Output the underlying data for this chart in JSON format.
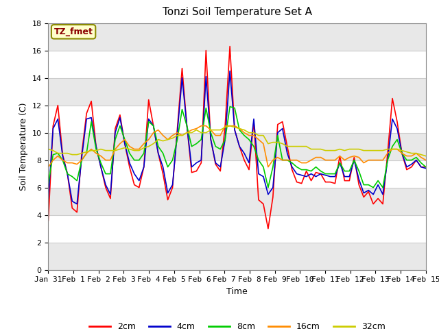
{
  "title": "Tonzi Soil Temperature Set A",
  "xlabel": "Time",
  "ylabel": "Soil Temperature (C)",
  "ylim": [
    0,
    18
  ],
  "yticks": [
    0,
    2,
    4,
    6,
    8,
    10,
    12,
    14,
    16,
    18
  ],
  "x_labels": [
    "Jan 31",
    "Feb 1",
    "Feb 2",
    "Feb 3",
    "Feb 4",
    "Feb 5",
    "Feb 6",
    "Feb 7",
    "Feb 8",
    "Feb 9",
    "Feb 10",
    "Feb 11",
    "Feb 12",
    "Feb 13",
    "Feb 14",
    "Feb 15"
  ],
  "annotation_text": "TZ_fmet",
  "annotation_color": "#8B0000",
  "annotation_bg": "#FFFFCC",
  "band_colors": [
    "#FFFFFF",
    "#E8E8E8"
  ],
  "legend_entries": [
    "2cm",
    "4cm",
    "8cm",
    "16cm",
    "32cm"
  ],
  "line_colors": [
    "#FF0000",
    "#0000CC",
    "#00CC00",
    "#FF8C00",
    "#CCCC00"
  ],
  "series": {
    "2cm": [
      3.6,
      10.5,
      12.0,
      8.4,
      7.0,
      4.5,
      4.2,
      8.5,
      11.4,
      12.3,
      9.0,
      7.5,
      6.0,
      5.2,
      10.3,
      11.3,
      9.2,
      7.5,
      6.2,
      6.0,
      7.5,
      12.4,
      10.5,
      8.5,
      7.0,
      5.1,
      6.0,
      10.3,
      14.7,
      10.5,
      7.1,
      7.2,
      7.8,
      16.0,
      9.5,
      7.7,
      7.2,
      10.5,
      16.3,
      10.2,
      9.0,
      8.0,
      7.3,
      10.8,
      5.1,
      4.8,
      3.0,
      5.3,
      10.6,
      10.8,
      9.0,
      7.3,
      6.4,
      6.3,
      7.2,
      6.5,
      7.1,
      7.0,
      6.4,
      6.4,
      6.3,
      8.3,
      6.5,
      6.5,
      8.2,
      6.2,
      5.3,
      5.7,
      4.8,
      5.2,
      4.8,
      8.5,
      12.5,
      10.8,
      8.5,
      7.3,
      7.5,
      8.0,
      7.5,
      7.5
    ],
    "4cm": [
      5.2,
      10.3,
      11.0,
      8.3,
      7.0,
      5.0,
      4.8,
      8.2,
      11.0,
      11.1,
      9.0,
      7.5,
      6.2,
      5.5,
      10.0,
      11.1,
      9.2,
      7.8,
      7.0,
      6.5,
      7.5,
      11.0,
      10.5,
      8.5,
      7.5,
      5.6,
      6.2,
      10.0,
      14.0,
      10.5,
      7.5,
      7.8,
      8.0,
      14.1,
      9.5,
      7.8,
      7.5,
      9.5,
      14.5,
      10.2,
      9.0,
      8.5,
      7.8,
      11.0,
      7.0,
      6.8,
      5.5,
      6.0,
      10.0,
      10.3,
      8.5,
      7.5,
      7.0,
      6.9,
      6.8,
      7.0,
      6.8,
      7.0,
      6.9,
      6.8,
      6.8,
      7.8,
      6.8,
      6.8,
      8.0,
      6.6,
      5.6,
      5.8,
      5.5,
      6.2,
      5.5,
      8.0,
      11.0,
      10.3,
      8.5,
      7.5,
      7.7,
      8.0,
      7.5,
      7.4
    ],
    "8cm": [
      6.3,
      8.4,
      8.5,
      8.0,
      7.0,
      6.8,
      6.5,
      8.0,
      8.5,
      10.8,
      8.8,
      7.8,
      7.0,
      7.0,
      9.5,
      10.5,
      9.5,
      8.5,
      8.0,
      8.0,
      8.5,
      10.8,
      10.5,
      9.0,
      8.5,
      7.5,
      8.0,
      9.5,
      11.7,
      10.5,
      9.0,
      9.2,
      9.5,
      11.8,
      10.0,
      9.0,
      8.8,
      9.5,
      11.9,
      11.8,
      10.2,
      9.8,
      9.5,
      9.0,
      8.0,
      7.5,
      6.0,
      7.5,
      9.8,
      8.0,
      8.0,
      7.8,
      7.5,
      7.3,
      7.3,
      7.2,
      7.5,
      7.2,
      7.0,
      7.0,
      7.0,
      7.8,
      7.2,
      7.2,
      8.0,
      7.2,
      6.2,
      6.2,
      6.0,
      6.5,
      6.0,
      8.0,
      9.0,
      9.5,
      8.5,
      8.0,
      8.0,
      8.2,
      7.8,
      7.5
    ],
    "16cm": [
      7.5,
      8.0,
      8.3,
      8.0,
      7.8,
      7.8,
      7.7,
      8.0,
      8.5,
      8.8,
      8.5,
      8.3,
      8.0,
      8.0,
      8.8,
      9.2,
      9.5,
      9.0,
      8.8,
      8.8,
      9.2,
      9.5,
      10.0,
      10.2,
      9.8,
      9.5,
      9.8,
      10.0,
      9.8,
      10.0,
      10.2,
      10.3,
      10.5,
      10.5,
      10.2,
      9.8,
      9.8,
      10.5,
      10.5,
      10.5,
      10.3,
      10.0,
      9.8,
      9.8,
      9.5,
      9.2,
      7.5,
      8.0,
      8.2,
      8.0,
      8.0,
      8.0,
      8.0,
      7.8,
      7.8,
      8.0,
      8.2,
      8.2,
      8.0,
      8.0,
      8.0,
      8.3,
      8.0,
      8.2,
      8.3,
      8.2,
      7.8,
      8.0,
      8.0,
      8.0,
      8.0,
      8.5,
      8.8,
      8.8,
      8.5,
      8.3,
      8.3,
      8.5,
      8.2,
      8.0
    ],
    "32cm": [
      8.8,
      8.7,
      8.5,
      8.5,
      8.5,
      8.4,
      8.4,
      8.5,
      8.6,
      8.7,
      8.7,
      8.8,
      8.7,
      8.7,
      8.7,
      8.8,
      8.9,
      8.8,
      8.7,
      8.7,
      8.9,
      9.0,
      9.2,
      9.5,
      9.4,
      9.5,
      9.6,
      9.8,
      9.8,
      10.0,
      10.0,
      10.2,
      10.0,
      10.0,
      10.2,
      10.2,
      10.2,
      10.4,
      10.5,
      10.4,
      10.3,
      10.2,
      10.0,
      10.0,
      9.8,
      9.8,
      9.2,
      9.3,
      9.3,
      9.2,
      9.0,
      9.0,
      9.0,
      9.0,
      9.0,
      8.8,
      8.8,
      8.8,
      8.7,
      8.7,
      8.7,
      8.8,
      8.7,
      8.8,
      8.8,
      8.8,
      8.7,
      8.7,
      8.7,
      8.7,
      8.7,
      8.8,
      8.8,
      8.8,
      8.7,
      8.6,
      8.5,
      8.5,
      8.4,
      8.3
    ]
  }
}
